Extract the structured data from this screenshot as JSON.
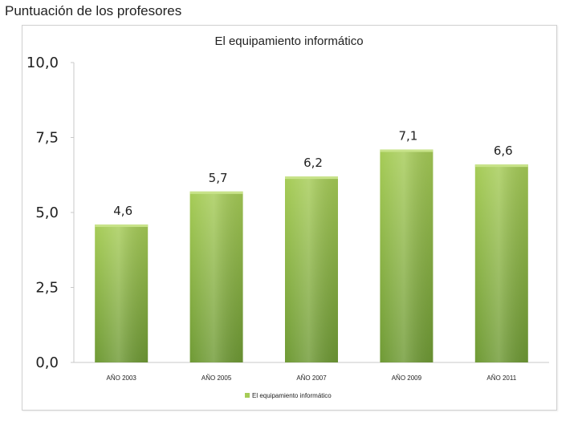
{
  "page": {
    "title": "Puntuación de los profesores"
  },
  "chart_data": {
    "type": "bar",
    "title": "El equipamiento informático",
    "categories": [
      "AÑO 2003",
      "AÑO 2005",
      "AÑO 2007",
      "AÑO 2009",
      "AÑO 2011"
    ],
    "series": [
      {
        "name": "El equipamiento informático",
        "values": [
          4.6,
          5.7,
          6.2,
          7.1,
          6.6
        ],
        "value_labels": [
          "4,6",
          "5,7",
          "6,2",
          "7,1",
          "6,6"
        ]
      }
    ],
    "ylim": [
      0,
      10
    ],
    "yticks": [
      0,
      2.5,
      5,
      7.5,
      10
    ],
    "ytick_labels": [
      "0,0",
      "2,5",
      "5,0",
      "7,5",
      "10,0"
    ],
    "xlabel": "",
    "ylabel": "",
    "grid": false,
    "legend_position": "bottom",
    "colors": {
      "bar_top": "#a6cc57",
      "bar_bottom": "#6f9a35",
      "bar_edge": "#c8e38a",
      "axis": "#c8c8c8",
      "text": "#222222"
    }
  }
}
